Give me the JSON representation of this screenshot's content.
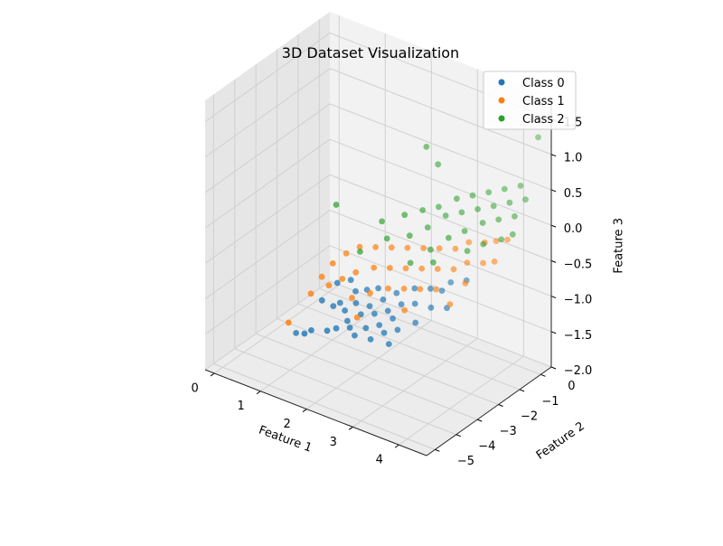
{
  "chart_data": {
    "type": "scatter",
    "projection": "3d",
    "title": "3D Dataset Visualization",
    "xlabel": "Feature 1",
    "ylabel": "Feature 2",
    "zlabel": "Feature 3",
    "xlim": [
      -0.2,
      4.6
    ],
    "ylim": [
      -5.4,
      0.5
    ],
    "zlim": [
      -2.0,
      1.8
    ],
    "xticks": [
      "0",
      "1",
      "2",
      "3",
      "4"
    ],
    "yticks": [
      "−5",
      "−4",
      "−3",
      "−2",
      "−1",
      "0"
    ],
    "zticks": [
      "−2.0",
      "−1.5",
      "−1.0",
      "−0.5",
      "0.0",
      "0.5",
      "1.0",
      "1.5"
    ],
    "grid": true,
    "legend_position": "top-right",
    "series": [
      {
        "name": "Class 0",
        "color": "#1f77b4",
        "points": [
          [
            0.35,
            -2.3,
            -2.0
          ],
          [
            0.9,
            -3.1,
            -1.7
          ],
          [
            1.0,
            -3.0,
            -1.65
          ],
          [
            1.05,
            -2.6,
            -1.3
          ],
          [
            1.2,
            -2.2,
            -1.1
          ],
          [
            1.25,
            -2.5,
            -1.35
          ],
          [
            1.3,
            -2.9,
            -1.6
          ],
          [
            1.35,
            -2.4,
            -1.3
          ],
          [
            1.4,
            -2.0,
            -1.05
          ],
          [
            1.45,
            -2.8,
            -1.55
          ],
          [
            1.5,
            -2.5,
            -1.35
          ],
          [
            1.55,
            -2.1,
            -1.15
          ],
          [
            1.6,
            -2.6,
            -1.45
          ],
          [
            1.65,
            -2.3,
            -1.25
          ],
          [
            1.7,
            -2.7,
            -1.5
          ],
          [
            1.75,
            -2.0,
            -1.1
          ],
          [
            1.8,
            -2.4,
            -1.35
          ],
          [
            1.85,
            -2.8,
            -1.55
          ],
          [
            1.9,
            -2.2,
            -1.25
          ],
          [
            1.95,
            -1.9,
            -1.05
          ],
          [
            2.0,
            -2.6,
            -1.45
          ],
          [
            2.05,
            -2.3,
            -1.3
          ],
          [
            2.1,
            -2.0,
            -1.15
          ],
          [
            2.15,
            -2.7,
            -1.55
          ],
          [
            2.2,
            -2.4,
            -1.4
          ],
          [
            2.25,
            -2.1,
            -1.25
          ],
          [
            2.3,
            -1.8,
            -1.05
          ],
          [
            2.35,
            -2.5,
            -1.45
          ],
          [
            2.4,
            -2.2,
            -1.3
          ],
          [
            2.45,
            -1.9,
            -1.15
          ],
          [
            2.5,
            -2.6,
            -1.55
          ],
          [
            2.55,
            -2.3,
            -1.4
          ],
          [
            2.6,
            -1.6,
            -0.95
          ],
          [
            2.7,
            -1.8,
            -1.1
          ],
          [
            2.8,
            -2.0,
            -1.3
          ],
          [
            2.9,
            -1.5,
            -0.9
          ],
          [
            3.0,
            -1.7,
            -1.1
          ],
          [
            3.1,
            -1.4,
            -0.9
          ],
          [
            3.2,
            -1.2,
            -0.8
          ],
          [
            3.3,
            -1.6,
            -1.05
          ],
          [
            3.45,
            -1.0,
            -0.75
          ]
        ]
      },
      {
        "name": "Class 1",
        "color": "#ff7f0e",
        "points": [
          [
            0.6,
            -3.2,
            -1.6
          ],
          [
            0.9,
            -2.8,
            -1.2
          ],
          [
            1.0,
            -2.5,
            -1.0
          ],
          [
            1.1,
            -2.2,
            -0.85
          ],
          [
            1.2,
            -2.6,
            -1.05
          ],
          [
            1.3,
            -2.0,
            -0.7
          ],
          [
            1.4,
            -2.4,
            -0.95
          ],
          [
            1.5,
            -1.8,
            -0.6
          ],
          [
            1.6,
            -2.2,
            -0.85
          ],
          [
            1.7,
            -2.6,
            -1.1
          ],
          [
            1.8,
            -1.7,
            -0.55
          ],
          [
            1.9,
            -2.0,
            -0.75
          ],
          [
            2.0,
            -2.4,
            -1.0
          ],
          [
            2.1,
            -1.6,
            -0.5
          ],
          [
            2.2,
            -1.9,
            -0.7
          ],
          [
            2.3,
            -2.2,
            -0.9
          ],
          [
            2.4,
            -1.5,
            -0.45
          ],
          [
            2.5,
            -1.8,
            -0.65
          ],
          [
            2.6,
            -2.1,
            -0.85
          ],
          [
            2.7,
            -1.4,
            -0.4
          ],
          [
            2.8,
            -1.7,
            -0.6
          ],
          [
            2.9,
            -2.0,
            -0.8
          ],
          [
            3.0,
            -1.3,
            -0.35
          ],
          [
            3.1,
            -1.6,
            -0.55
          ],
          [
            3.2,
            -1.9,
            -0.75
          ],
          [
            3.3,
            -1.2,
            -0.3
          ],
          [
            3.4,
            -1.5,
            -0.5
          ],
          [
            3.5,
            -1.0,
            -0.2
          ],
          [
            3.6,
            -1.3,
            -0.4
          ],
          [
            3.7,
            -1.6,
            -0.6
          ],
          [
            3.8,
            -0.9,
            -0.15
          ],
          [
            3.9,
            -1.2,
            -0.35
          ],
          [
            4.0,
            -0.8,
            -0.1
          ],
          [
            4.1,
            -1.1,
            -0.3
          ],
          [
            4.2,
            -0.7,
            -0.05
          ],
          [
            3.55,
            -2.0,
            -0.85
          ],
          [
            2.75,
            -2.4,
            -1.05
          ],
          [
            1.95,
            -2.9,
            -1.25
          ]
        ]
      },
      {
        "name": "Class 2",
        "color": "#2ca02c",
        "points": [
          [
            0.9,
            -1.6,
            -0.2
          ],
          [
            1.6,
            -2.0,
            -0.6
          ],
          [
            1.8,
            -1.4,
            -0.25
          ],
          [
            2.0,
            -1.6,
            -0.4
          ],
          [
            2.2,
            -1.2,
            -0.1
          ],
          [
            2.4,
            -1.4,
            -0.3
          ],
          [
            2.5,
            -1.0,
            0.0
          ],
          [
            2.6,
            -1.8,
            -0.55
          ],
          [
            2.7,
            -1.2,
            -0.15
          ],
          [
            2.8,
            -0.9,
            0.1
          ],
          [
            2.9,
            -1.5,
            -0.35
          ],
          [
            3.0,
            -1.0,
            0.05
          ],
          [
            3.1,
            -0.7,
            0.25
          ],
          [
            3.2,
            -1.3,
            -0.15
          ],
          [
            3.3,
            -0.9,
            0.15
          ],
          [
            3.4,
            -0.6,
            0.35
          ],
          [
            3.5,
            -1.2,
            0.0
          ],
          [
            3.6,
            -0.8,
            0.25
          ],
          [
            3.7,
            -0.5,
            0.45
          ],
          [
            3.8,
            -1.0,
            0.15
          ],
          [
            3.9,
            -0.7,
            0.35
          ],
          [
            4.0,
            -0.4,
            0.55
          ],
          [
            4.1,
            -0.9,
            0.25
          ],
          [
            4.2,
            -0.6,
            0.45
          ],
          [
            4.3,
            -0.3,
            0.65
          ],
          [
            4.4,
            -0.8,
            0.35
          ],
          [
            4.5,
            -0.5,
            0.55
          ],
          [
            3.05,
            -1.7,
            -0.45
          ],
          [
            3.65,
            -1.4,
            -0.2
          ],
          [
            4.25,
            -1.1,
            0.05
          ],
          [
            4.35,
            0.2,
            1.5
          ],
          [
            4.5,
            0.1,
            1.3
          ],
          [
            2.65,
            -0.6,
            0.6
          ],
          [
            2.35,
            -0.5,
            0.75
          ],
          [
            3.95,
            -1.3,
            -0.05
          ],
          [
            4.45,
            -1.0,
            0.15
          ]
        ]
      }
    ]
  }
}
